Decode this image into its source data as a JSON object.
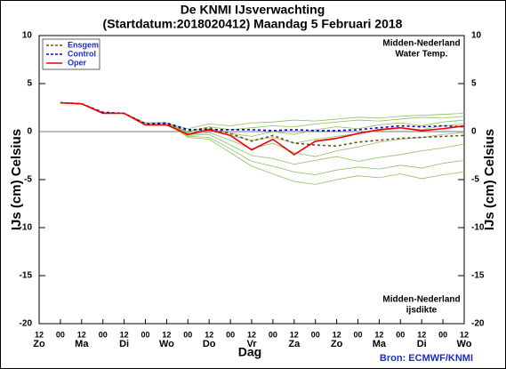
{
  "chart_data": {
    "type": "line",
    "title": "De KNMI IJsverwachting",
    "subtitle": "(Startdatum:2018020412)  Maandag  5 Februari 2018",
    "ylabel": "IJs (cm)  Celsius",
    "xlabel": "Dag",
    "source": "Bron: ECMWF/KNMI",
    "annotations": [
      {
        "lines": [
          "Midden-Nederland",
          "Water Temp."
        ]
      },
      {
        "lines": [
          "Midden-Nederland",
          "ijsdikte"
        ]
      }
    ],
    "categories": [
      "12",
      "00",
      "12",
      "00",
      "12",
      "00",
      "12",
      "00",
      "12",
      "00",
      "12",
      "00",
      "12",
      "00",
      "12",
      "00",
      "12",
      "00",
      "12",
      "00",
      "12"
    ],
    "day_labels": [
      "Zo",
      null,
      "Ma",
      null,
      "Di",
      null,
      "Wo",
      null,
      "Do",
      null,
      "Vr",
      null,
      "Za",
      null,
      "Zo",
      null,
      "Ma",
      null,
      "Di",
      null,
      "Wo"
    ],
    "ylim": [
      -20,
      10
    ],
    "yticks": [
      -20,
      -15,
      -10,
      -5,
      0,
      5,
      10
    ],
    "zero_line": true,
    "legend": "upper left",
    "ensemble": {
      "color": "#8cc063",
      "members": [
        [
          null,
          3.0,
          2.9,
          2.0,
          1.9,
          0.9,
          0.9,
          0.3,
          0.8,
          0.6,
          0.9,
          1.0,
          1.2,
          1.1,
          1.3,
          1.5,
          1.4,
          1.6,
          1.7,
          1.8,
          1.9
        ],
        [
          null,
          3.0,
          2.9,
          2.0,
          1.9,
          0.9,
          0.9,
          0.0,
          0.5,
          0.2,
          0.4,
          0.6,
          0.5,
          0.8,
          1.0,
          1.2,
          1.1,
          1.3,
          1.5,
          1.4,
          1.6
        ],
        [
          null,
          3.0,
          2.9,
          2.0,
          1.9,
          0.9,
          0.9,
          -0.2,
          0.1,
          -0.4,
          -0.9,
          -0.6,
          -1.2,
          -0.8,
          -0.5,
          -0.2,
          0.1,
          0.4,
          0.2,
          0.6,
          0.8
        ],
        [
          null,
          3.0,
          2.9,
          2.0,
          1.9,
          0.9,
          0.9,
          -0.3,
          -0.1,
          -0.9,
          -1.8,
          -1.2,
          -2.2,
          -2.6,
          -2.0,
          -1.6,
          -1.1,
          -0.8,
          -0.6,
          -0.3,
          -0.1
        ],
        [
          null,
          3.0,
          2.9,
          2.0,
          1.9,
          0.9,
          0.9,
          -0.4,
          -0.3,
          -1.4,
          -2.5,
          -2.8,
          -3.4,
          -3.0,
          -2.6,
          -3.1,
          -2.7,
          -2.4,
          -2.0,
          -1.7,
          -1.3
        ],
        [
          null,
          3.0,
          2.9,
          2.0,
          1.9,
          0.9,
          0.9,
          -0.5,
          -0.6,
          -1.8,
          -3.1,
          -3.6,
          -4.2,
          -4.5,
          -4.0,
          -3.7,
          -3.9,
          -3.5,
          -3.8,
          -3.3,
          -3.0
        ],
        [
          null,
          3.0,
          2.9,
          2.0,
          1.9,
          0.9,
          0.9,
          -0.6,
          -0.8,
          -2.2,
          -3.6,
          -4.4,
          -5.2,
          -5.5,
          -5.0,
          -4.6,
          -4.8,
          -4.4,
          -4.9,
          -4.5,
          -4.2
        ],
        [
          null,
          3.0,
          2.9,
          2.0,
          1.9,
          0.9,
          0.9,
          -0.1,
          0.3,
          -0.2,
          -0.5,
          0.0,
          -0.3,
          0.2,
          0.5,
          0.3,
          0.7,
          0.9,
          0.6,
          1.0,
          1.2
        ]
      ]
    },
    "series": [
      {
        "name": "Ensgem",
        "color": "#6b4a1e",
        "dash": true,
        "values": [
          null,
          3.0,
          2.9,
          2.0,
          1.9,
          0.8,
          0.8,
          0.1,
          0.4,
          -0.2,
          -1.0,
          -0.4,
          -1.2,
          -1.4,
          -1.5,
          -1.1,
          -0.9,
          -0.7,
          -0.6,
          -0.5,
          -0.4
        ]
      },
      {
        "name": "Control",
        "color": "#0000dd",
        "dash": true,
        "values": [
          null,
          3.0,
          2.9,
          2.0,
          1.9,
          0.8,
          0.9,
          0.2,
          0.2,
          0.2,
          0.2,
          0.1,
          0.2,
          0.1,
          0.1,
          0.2,
          0.4,
          0.6,
          0.5,
          0.6,
          0.5
        ]
      },
      {
        "name": "Oper",
        "color": "#ee0000",
        "dash": false,
        "values": [
          null,
          3.0,
          2.9,
          1.9,
          1.9,
          0.7,
          0.7,
          -0.3,
          0.2,
          -0.4,
          -1.9,
          -0.8,
          -2.4,
          -1.0,
          -0.7,
          -0.2,
          0.2,
          0.4,
          0.1,
          0.3,
          0.6
        ]
      }
    ]
  }
}
